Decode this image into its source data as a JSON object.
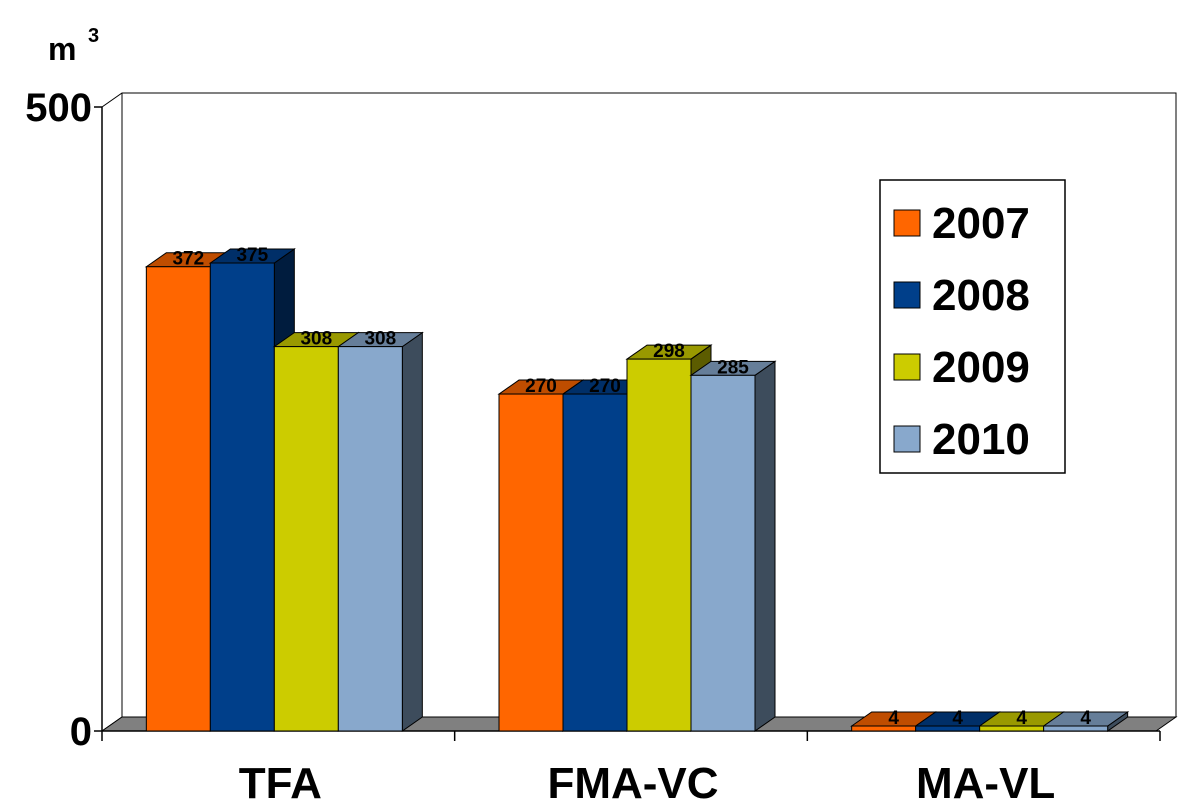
{
  "chart_data": {
    "type": "bar",
    "ylabel": "m",
    "ylabel_superscript": "3",
    "ylim": [
      0,
      500
    ],
    "yticks": [
      "0",
      "500"
    ],
    "categories": [
      "TFA",
      "FMA-VC",
      "MA-VL"
    ],
    "series": [
      {
        "name": "2007",
        "color": "#FF6600",
        "values": [
          372,
          270,
          4
        ]
      },
      {
        "name": "2008",
        "color": "#003F8A",
        "values": [
          375,
          270,
          4
        ]
      },
      {
        "name": "2009",
        "color": "#CCCC00",
        "values": [
          308,
          298,
          4
        ]
      },
      {
        "name": "2010",
        "color": "#88A8CC",
        "values": [
          308,
          285,
          4
        ]
      }
    ],
    "legend_position": "right",
    "grid": false,
    "style": "3d-clustered-column"
  }
}
